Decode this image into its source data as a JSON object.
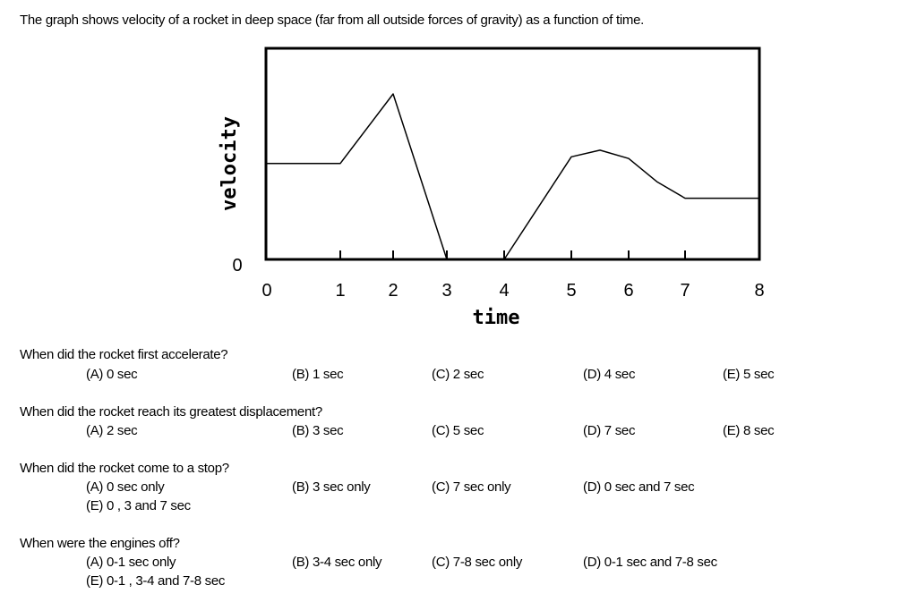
{
  "intro": "The graph  shows velocity of a rocket in deep space (far from all outside forces of gravity) as a function of time.",
  "chart_data": {
    "type": "line",
    "xlabel": "time",
    "ylabel": "velocity",
    "xlim": [
      0,
      8
    ],
    "x_ticks": [
      "0",
      "1",
      "2",
      "3",
      "4",
      "5",
      "6",
      "7",
      "8"
    ],
    "y_ticks": [
      "0"
    ],
    "grid": false,
    "series": [
      {
        "points": [
          [
            0,
            0.58
          ],
          [
            1,
            0.58
          ],
          [
            2,
            1.0
          ],
          [
            3,
            0.0
          ],
          [
            4,
            0.0
          ],
          [
            5,
            0.62
          ],
          [
            5.5,
            0.66
          ],
          [
            6,
            0.61
          ],
          [
            6.5,
            0.47
          ],
          [
            7,
            0.37
          ],
          [
            8,
            0.37
          ]
        ]
      }
    ]
  },
  "questions": [
    {
      "stem": "When did the rocket first accelerate?",
      "options": [
        "(A) 0 sec",
        "(B) 1 sec",
        "(C) 2 sec",
        "(D) 4 sec",
        "(E) 5 sec"
      ]
    },
    {
      "stem": "When did the rocket reach its greatest displacement?",
      "options": [
        "(A) 2 sec",
        "(B) 3 sec",
        "(C) 5 sec",
        "(D) 7 sec",
        "(E) 8 sec"
      ]
    },
    {
      "stem": "When did the rocket come to a stop?",
      "options": [
        "(A) 0 sec only",
        "(B) 3 sec only",
        "(C) 7 sec only",
        "(D) 0 sec and 7 sec",
        "(E) 0 , 3 and 7 sec"
      ]
    },
    {
      "stem": "When were the engines off?",
      "options": [
        "(A) 0-1 sec only",
        "(B) 3-4 sec only",
        "(C) 7-8 sec only",
        "(D) 0-1 sec and 7-8 sec",
        "(E) 0-1 , 3-4 and 7-8 sec"
      ]
    }
  ]
}
